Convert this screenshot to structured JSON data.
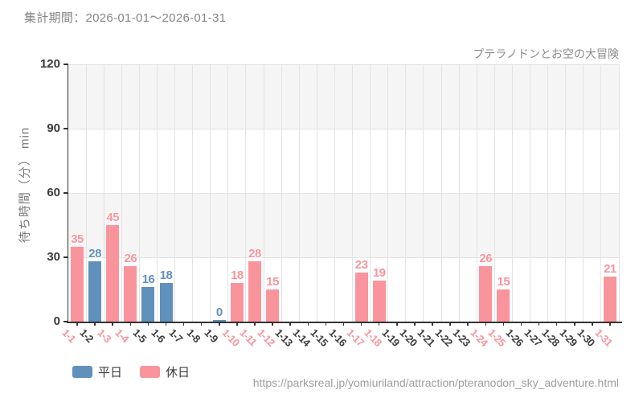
{
  "header": {
    "period_label": "集計期間：2026-01-01～2026-01-31"
  },
  "footer": {
    "url": "https://parksreal.jp/yomiuriland/attraction/pteranodon_sky_adventure.html"
  },
  "colors": {
    "weekday": "#6090bc",
    "holiday": "#f9949c",
    "band": "#f5f5f5",
    "grid": "#e3e3e3",
    "axis": "#333333",
    "xtick_weekday": "#3d3d3d",
    "xtick_holiday": "#f9949c"
  },
  "chart_data": {
    "type": "bar",
    "title": "プテラノドンとお空の大冒険",
    "xlabel": "",
    "ylabel": "待ち時間（分） min",
    "ylim": [
      0,
      120
    ],
    "yticks": [
      0,
      30,
      60,
      90,
      120
    ],
    "grid": "horizontal-bands and vertical lines",
    "legend_position": "bottom-left",
    "legend": [
      {
        "label": "平日",
        "key": "weekday"
      },
      {
        "label": "休日",
        "key": "holiday"
      }
    ],
    "categories": [
      "1-1",
      "1-2",
      "1-3",
      "1-4",
      "1-5",
      "1-6",
      "1-7",
      "1-8",
      "1-9",
      "1-10",
      "1-11",
      "1-12",
      "1-13",
      "1-14",
      "1-15",
      "1-16",
      "1-17",
      "1-18",
      "1-19",
      "1-20",
      "1-21",
      "1-22",
      "1-23",
      "1-24",
      "1-25",
      "1-26",
      "1-27",
      "1-28",
      "1-29",
      "1-30",
      "1-31"
    ],
    "values": [
      35,
      28,
      45,
      26,
      16,
      18,
      null,
      null,
      0,
      18,
      28,
      15,
      null,
      null,
      null,
      null,
      23,
      19,
      null,
      null,
      null,
      null,
      null,
      26,
      15,
      null,
      null,
      null,
      null,
      null,
      21
    ],
    "bar_type": [
      "holiday",
      "weekday",
      "holiday",
      "holiday",
      "weekday",
      "weekday",
      null,
      null,
      "weekday",
      "holiday",
      "holiday",
      "holiday",
      null,
      null,
      null,
      null,
      "holiday",
      "holiday",
      null,
      null,
      null,
      null,
      null,
      "holiday",
      "holiday",
      null,
      null,
      null,
      null,
      null,
      "holiday"
    ],
    "xtick_holiday": [
      true,
      false,
      true,
      true,
      false,
      false,
      false,
      false,
      false,
      true,
      true,
      true,
      false,
      false,
      false,
      false,
      true,
      true,
      false,
      false,
      false,
      false,
      false,
      true,
      true,
      false,
      false,
      false,
      false,
      false,
      true
    ]
  }
}
